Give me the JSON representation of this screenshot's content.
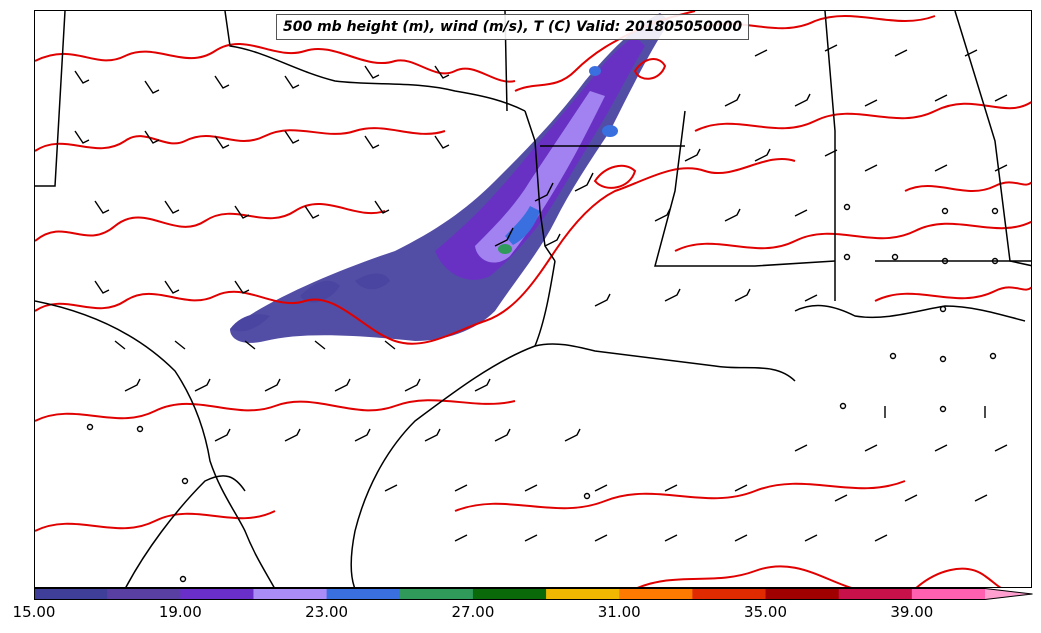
{
  "title": "500 mb height (m), wind (m/s), T (C) Valid: 201805050000",
  "colorbar": {
    "colors": [
      "#3f3f9a",
      "#5a3fa3",
      "#6a2fc8",
      "#a98cf5",
      "#3a6fe0",
      "#2f9a5a",
      "#0a6a0a",
      "#f0b800",
      "#ff7a00",
      "#e02a00",
      "#a00000",
      "#c8104a",
      "#ff60b0",
      "#ffa0d0"
    ],
    "tick_labels": [
      "15.00",
      "19.00",
      "23.00",
      "27.00",
      "31.00",
      "35.00",
      "39.00"
    ],
    "extend": "max"
  },
  "map": {
    "region": "South-Central United States and Gulf of Mexico",
    "fields": [
      "shaded wind speed (m/s)",
      "500 mb height contours",
      "temperature contours (red)",
      "wind barbs"
    ],
    "contour_color": "#e00000",
    "barb_color": "#000000"
  }
}
